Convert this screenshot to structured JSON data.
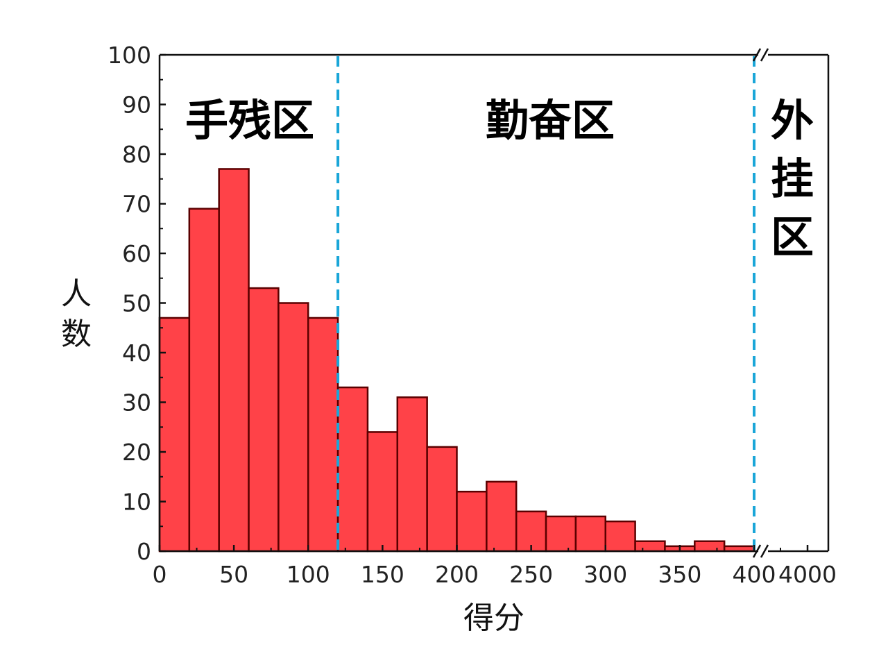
{
  "chart_data": {
    "type": "bar",
    "bin_width": 20,
    "bins": [
      {
        "x_start": 0,
        "x_end": 20,
        "value": 47
      },
      {
        "x_start": 20,
        "x_end": 40,
        "value": 69
      },
      {
        "x_start": 40,
        "x_end": 60,
        "value": 77
      },
      {
        "x_start": 60,
        "x_end": 80,
        "value": 53
      },
      {
        "x_start": 80,
        "x_end": 100,
        "value": 50
      },
      {
        "x_start": 100,
        "x_end": 120,
        "value": 47
      },
      {
        "x_start": 120,
        "x_end": 140,
        "value": 33
      },
      {
        "x_start": 140,
        "x_end": 160,
        "value": 24
      },
      {
        "x_start": 160,
        "x_end": 180,
        "value": 31
      },
      {
        "x_start": 180,
        "x_end": 200,
        "value": 21
      },
      {
        "x_start": 200,
        "x_end": 220,
        "value": 12
      },
      {
        "x_start": 220,
        "x_end": 240,
        "value": 14
      },
      {
        "x_start": 240,
        "x_end": 260,
        "value": 8
      },
      {
        "x_start": 260,
        "x_end": 280,
        "value": 7
      },
      {
        "x_start": 280,
        "x_end": 300,
        "value": 7
      },
      {
        "x_start": 300,
        "x_end": 320,
        "value": 6
      },
      {
        "x_start": 320,
        "x_end": 340,
        "value": 2
      },
      {
        "x_start": 340,
        "x_end": 360,
        "value": 1
      },
      {
        "x_start": 360,
        "x_end": 380,
        "value": 2
      },
      {
        "x_start": 380,
        "x_end": 400,
        "value": 1
      }
    ],
    "xlabel": "得分",
    "ylabel": "人数",
    "xlim": [
      0,
      400
    ],
    "x_break": {
      "after": 400,
      "upper_ticks": [
        "4000"
      ]
    },
    "ylim": [
      0,
      100
    ],
    "x_ticks": [
      "0",
      "50",
      "100",
      "150",
      "200",
      "250",
      "300",
      "350",
      "400"
    ],
    "y_ticks": [
      "0",
      "10",
      "20",
      "30",
      "40",
      "50",
      "60",
      "70",
      "80",
      "90",
      "100"
    ],
    "dividers": [
      120,
      400
    ],
    "zones": [
      {
        "label": "手残区"
      },
      {
        "label": "勤奋区"
      },
      {
        "label": "外挂区"
      }
    ],
    "bar_color": "#ff4248",
    "bar_edge_color": "#5a0000",
    "divider_color": "#1aa6d8",
    "grid": false
  }
}
